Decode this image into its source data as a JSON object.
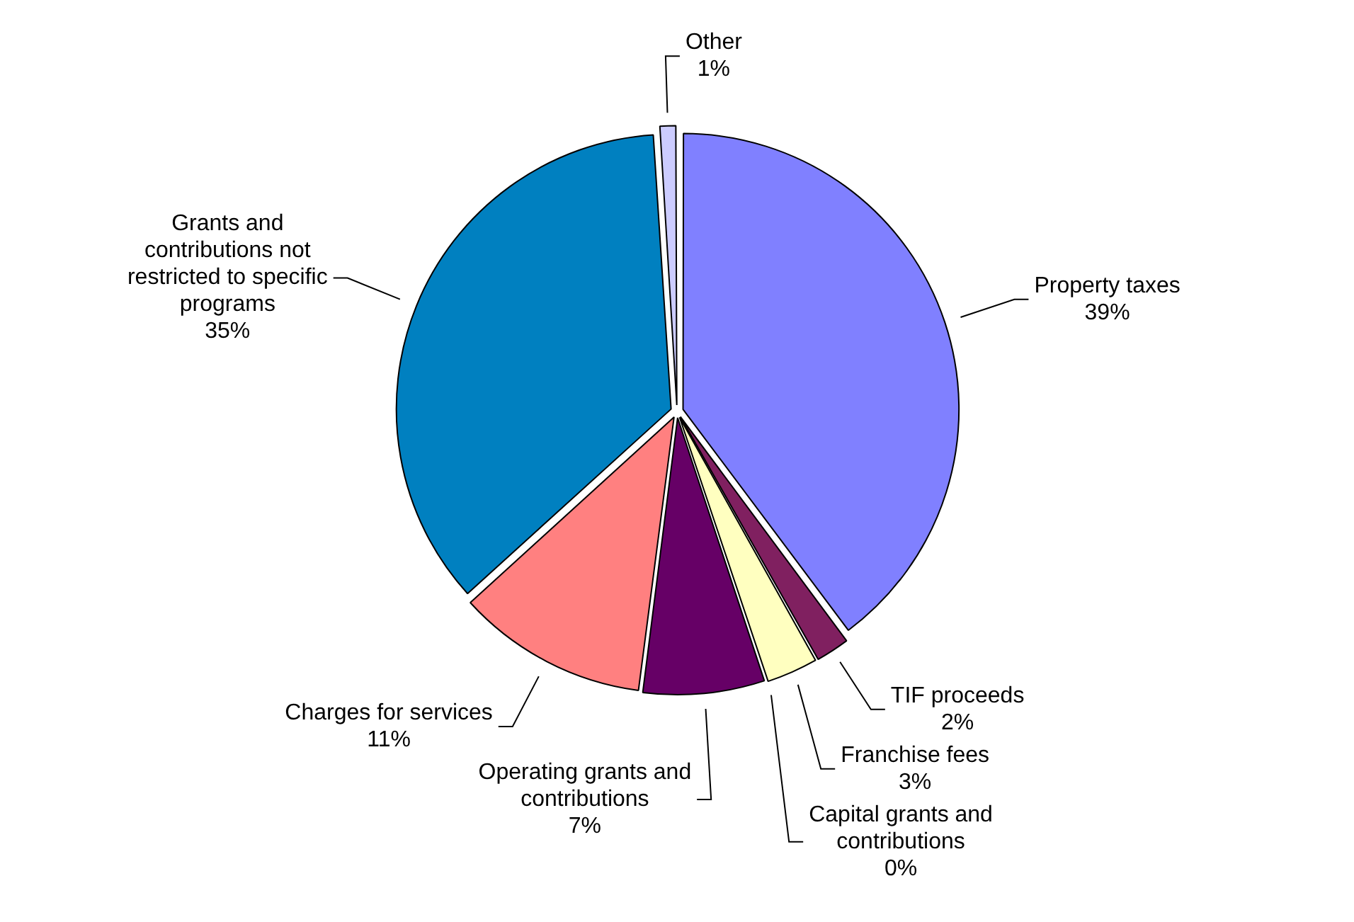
{
  "chart_data": {
    "type": "pie",
    "categories": [
      "Property taxes",
      "TIF proceeds",
      "Franchise fees",
      "Capital grants and contributions",
      "Operating grants and contributions",
      "Charges for services",
      "Grants and contributions not restricted to specific programs",
      "Other"
    ],
    "values": [
      39,
      2,
      3,
      0,
      7,
      11,
      35,
      1
    ],
    "value_labels": [
      "39%",
      "2%",
      "3%",
      "0%",
      "7%",
      "11%",
      "35%",
      "1%"
    ],
    "colors": [
      "#8080ff",
      "#802060",
      "#ffffc0",
      "#a0e0e0",
      "#660066",
      "#ff8080",
      "#0080c0",
      "#ccccff"
    ],
    "legend": false
  }
}
